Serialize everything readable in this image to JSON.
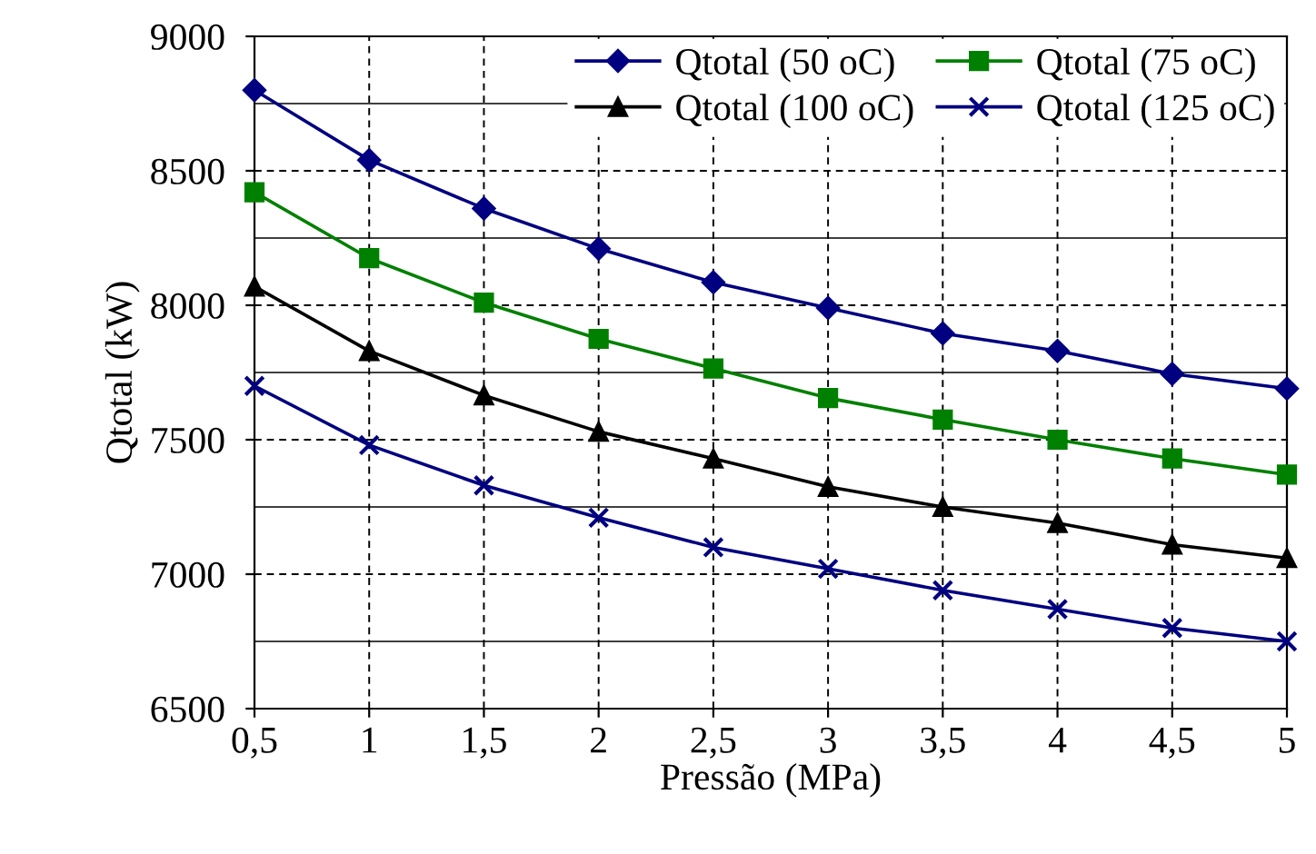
{
  "chart_data": {
    "type": "line",
    "xlabel": "Pressão (MPa)",
    "ylabel": "Qtotal (kW)",
    "x": [
      0.5,
      1,
      1.5,
      2,
      2.5,
      3,
      3.5,
      4,
      4.5,
      5
    ],
    "series": [
      {
        "name": "Qtotal (50 oC)",
        "color": "#000080",
        "marker": "diamond",
        "values": [
          8800,
          8540,
          8360,
          8210,
          8085,
          7990,
          7895,
          7830,
          7745,
          7690
        ]
      },
      {
        "name": "Qtotal (75 oC)",
        "color": "#008000",
        "marker": "square",
        "values": [
          8420,
          8175,
          8010,
          7875,
          7765,
          7655,
          7575,
          7500,
          7430,
          7370
        ]
      },
      {
        "name": "Qtotal (100 oC)",
        "color": "#000000",
        "marker": "triangle",
        "values": [
          8070,
          7830,
          7665,
          7530,
          7430,
          7325,
          7250,
          7190,
          7110,
          7060
        ]
      },
      {
        "name": "Qtotal (125 oC)",
        "color": "#000080",
        "marker": "cross",
        "values": [
          7700,
          7480,
          7330,
          7210,
          7100,
          7020,
          6940,
          6870,
          6800,
          6750
        ]
      }
    ],
    "xlim": [
      0.5,
      5
    ],
    "xticks": [
      {
        "value": 0.5,
        "label": "0,5"
      },
      1,
      {
        "value": 1.5,
        "label": "1,5"
      },
      2,
      {
        "value": 2.5,
        "label": "2,5"
      },
      3,
      {
        "value": 3.5,
        "label": "3,5"
      },
      4,
      {
        "value": 4.5,
        "label": "4,5"
      },
      5
    ],
    "ylim": [
      6500,
      9000
    ],
    "yticks": [
      6500,
      {
        "value": 6750,
        "label": null
      },
      7000,
      {
        "value": 7250,
        "label": null
      },
      7500,
      {
        "value": 7750,
        "label": null
      },
      8000,
      {
        "value": 8250,
        "label": null
      },
      8500,
      {
        "value": 8750,
        "label": null
      },
      9000
    ],
    "grid": true,
    "legend": "top right",
    "line_style": "solid"
  }
}
